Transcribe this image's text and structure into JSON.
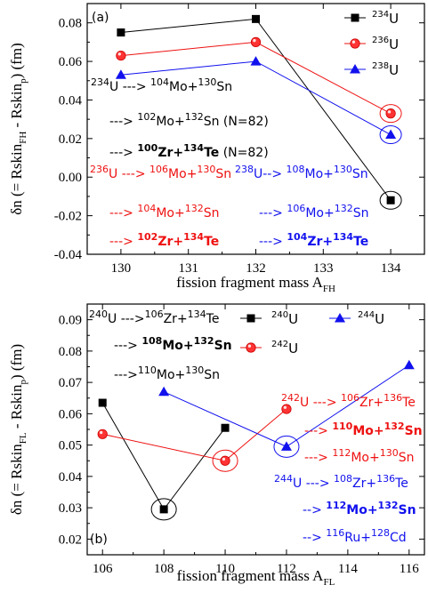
{
  "chart_data": [
    {
      "type": "line",
      "panel_label": "(a)",
      "xlabel": "fission fragment mass A",
      "xlabel_sub": "FH",
      "ylabel": "δn (= Rskin",
      "ylabel_sub1": "FH",
      "ylabel_mid": " - Rskin",
      "ylabel_sub2": "p",
      "ylabel_end": ") (fm)",
      "xlim": [
        129.5,
        134.5
      ],
      "ylim": [
        -0.04,
        0.09
      ],
      "xticks": [
        130,
        131,
        132,
        133,
        134
      ],
      "yticks": [
        -0.04,
        -0.02,
        0.0,
        0.02,
        0.04,
        0.06,
        0.08
      ],
      "ytick_labels": [
        "-0.04",
        "-0.02",
        "0.00",
        "0.02",
        "0.04",
        "0.06",
        "0.08"
      ],
      "series": [
        {
          "name_sup": "234",
          "name": "U",
          "color": "#000000",
          "marker": "square",
          "x": [
            130,
            132,
            134
          ],
          "y": [
            0.075,
            0.082,
            -0.012
          ]
        },
        {
          "name_sup": "236",
          "name": "U",
          "color": "#ee1111",
          "marker": "circle",
          "x": [
            130,
            132,
            134
          ],
          "y": [
            0.063,
            0.07,
            0.033
          ]
        },
        {
          "name_sup": "238",
          "name": "U",
          "color": "#1111ee",
          "marker": "triangle",
          "x": [
            130,
            132,
            134
          ],
          "y": [
            0.053,
            0.06,
            0.022
          ]
        }
      ],
      "ellipses": [
        {
          "x": 134,
          "y": -0.012,
          "color": "#000000"
        },
        {
          "x": 134,
          "y": 0.033,
          "color": "#ee1111"
        },
        {
          "x": 134,
          "y": 0.022,
          "color": "#1111ee"
        }
      ],
      "annotations": [
        {
          "color": "#000000",
          "bold": false,
          "parts": [
            [
              "sup",
              "234"
            ],
            [
              "t",
              "U ---> "
            ],
            [
              "sup",
              "104"
            ],
            [
              "t",
              "Mo+"
            ],
            [
              "sup",
              "130"
            ],
            [
              "t",
              "Sn"
            ]
          ]
        },
        {
          "color": "#000000",
          "bold": false,
          "parts": [
            [
              "t",
              "---> "
            ],
            [
              "sup",
              "102"
            ],
            [
              "t",
              "Mo+"
            ],
            [
              "sup",
              "132"
            ],
            [
              "t",
              "Sn (N=82)"
            ]
          ]
        },
        {
          "color": "#000000",
          "bold": false,
          "parts": [
            [
              "t",
              "---> "
            ],
            [
              "sup",
              "100",
              "b"
            ],
            [
              "t",
              "Zr+",
              "b"
            ],
            [
              "sup",
              "134",
              "b"
            ],
            [
              "t",
              "Te",
              "b"
            ],
            [
              "t",
              "  (N=82)"
            ]
          ]
        },
        {
          "color": "#ee1111",
          "bold": false,
          "parts": [
            [
              "sup",
              "236"
            ],
            [
              "t",
              "U ---> "
            ],
            [
              "sup",
              "106"
            ],
            [
              "t",
              "Mo+"
            ],
            [
              "sup",
              "130"
            ],
            [
              "t",
              "Sn"
            ]
          ]
        },
        {
          "color": "#1111ee",
          "bold": false,
          "parts": [
            [
              "sup",
              "238"
            ],
            [
              "t",
              "U--> "
            ],
            [
              "sup",
              "108"
            ],
            [
              "t",
              "Mo+"
            ],
            [
              "sup",
              "130"
            ],
            [
              "t",
              "Sn"
            ]
          ]
        },
        {
          "color": "#ee1111",
          "bold": false,
          "parts": [
            [
              "t",
              "---> "
            ],
            [
              "sup",
              "104"
            ],
            [
              "t",
              "Mo+"
            ],
            [
              "sup",
              "132"
            ],
            [
              "t",
              "Sn"
            ]
          ]
        },
        {
          "color": "#1111ee",
          "bold": false,
          "parts": [
            [
              "t",
              "---> "
            ],
            [
              "sup",
              "106"
            ],
            [
              "t",
              "Mo+"
            ],
            [
              "sup",
              "132"
            ],
            [
              "t",
              "Sn"
            ]
          ]
        },
        {
          "color": "#ee1111",
          "bold": false,
          "parts": [
            [
              "t",
              "---> "
            ],
            [
              "sup",
              "102",
              "b"
            ],
            [
              "t",
              "Zr+",
              "b"
            ],
            [
              "sup",
              "134",
              "b"
            ],
            [
              "t",
              "Te",
              "b"
            ]
          ]
        },
        {
          "color": "#1111ee",
          "bold": false,
          "parts": [
            [
              "t",
              "---> "
            ],
            [
              "sup",
              "104",
              "b"
            ],
            [
              "t",
              "Zr+",
              "b"
            ],
            [
              "sup",
              "134",
              "b"
            ],
            [
              "t",
              "Te",
              "b"
            ]
          ]
        }
      ]
    },
    {
      "type": "line",
      "panel_label": "(b)",
      "xlabel": "fission fragment mass  A",
      "xlabel_sub": "FL",
      "ylabel": "δn (= Rskin",
      "ylabel_sub1": "FL",
      "ylabel_mid": " - Rskin",
      "ylabel_sub2": "p",
      "ylabel_end": ") (fm)",
      "xlim": [
        105.5,
        116.5
      ],
      "ylim": [
        0.015,
        0.095
      ],
      "xticks": [
        106,
        108,
        110,
        112,
        114,
        116
      ],
      "yticks": [
        0.02,
        0.03,
        0.04,
        0.05,
        0.06,
        0.07,
        0.08,
        0.09
      ],
      "ytick_labels": [
        "0.02",
        "0.03",
        "0.04",
        "0.05",
        "0.06",
        "0.07",
        "0.08",
        "0.09"
      ],
      "series": [
        {
          "name_sup": "240",
          "name": "U",
          "color": "#000000",
          "marker": "square",
          "x": [
            106,
            108,
            110
          ],
          "y": [
            0.0635,
            0.0295,
            0.0555
          ]
        },
        {
          "name_sup": "242",
          "name": "U",
          "color": "#ee1111",
          "marker": "circle",
          "x": [
            106,
            110,
            112
          ],
          "y": [
            0.0535,
            0.045,
            0.0615
          ]
        },
        {
          "name_sup": "244",
          "name": "U",
          "color": "#1111ee",
          "marker": "triangle",
          "x": [
            108,
            112,
            116
          ],
          "y": [
            0.067,
            0.0495,
            0.0755
          ]
        }
      ],
      "ellipses": [
        {
          "x": 108,
          "y": 0.0295,
          "color": "#000000"
        },
        {
          "x": 110,
          "y": 0.045,
          "color": "#ee1111"
        },
        {
          "x": 112,
          "y": 0.0495,
          "color": "#1111ee"
        }
      ],
      "annotations": [
        {
          "color": "#000000",
          "bold": false,
          "parts": [
            [
              "sup",
              "240"
            ],
            [
              "t",
              "U --->"
            ],
            [
              "sup",
              "106"
            ],
            [
              "t",
              "Zr+"
            ],
            [
              "sup",
              "134"
            ],
            [
              "t",
              "Te"
            ]
          ]
        },
        {
          "color": "#000000",
          "bold": false,
          "parts": [
            [
              "t",
              "---> "
            ],
            [
              "sup",
              "108",
              "b"
            ],
            [
              "t",
              "Mo+",
              "b"
            ],
            [
              "sup",
              "132",
              "b"
            ],
            [
              "t",
              "Sn",
              "b"
            ]
          ]
        },
        {
          "color": "#000000",
          "bold": false,
          "parts": [
            [
              "t",
              "--->"
            ],
            [
              "sup",
              "110"
            ],
            [
              "t",
              "Mo+"
            ],
            [
              "sup",
              "130"
            ],
            [
              "t",
              "Sn"
            ]
          ]
        },
        {
          "color": "#ee1111",
          "bold": false,
          "parts": [
            [
              "sup",
              "242"
            ],
            [
              "t",
              "U ---> "
            ],
            [
              "sup",
              "106"
            ],
            [
              "t",
              "Zr+"
            ],
            [
              "sup",
              "136"
            ],
            [
              "t",
              "Te"
            ]
          ]
        },
        {
          "color": "#ee1111",
          "bold": false,
          "parts": [
            [
              "t",
              "---> "
            ],
            [
              "sup",
              "110",
              "b"
            ],
            [
              "t",
              "Mo+",
              "b"
            ],
            [
              "sup",
              "132",
              "b"
            ],
            [
              "t",
              "Sn",
              "b"
            ]
          ]
        },
        {
          "color": "#ee1111",
          "bold": false,
          "parts": [
            [
              "t",
              "---> "
            ],
            [
              "sup",
              "112"
            ],
            [
              "t",
              "Mo+"
            ],
            [
              "sup",
              "130"
            ],
            [
              "t",
              "Sn"
            ]
          ]
        },
        {
          "color": "#1111ee",
          "bold": false,
          "parts": [
            [
              "sup",
              "244"
            ],
            [
              "t",
              "U ---> "
            ],
            [
              "sup",
              "108"
            ],
            [
              "t",
              "Zr+"
            ],
            [
              "sup",
              "136"
            ],
            [
              "t",
              "Te"
            ]
          ]
        },
        {
          "color": "#1111ee",
          "bold": false,
          "parts": [
            [
              "t",
              "--> "
            ],
            [
              "sup",
              "112",
              "b"
            ],
            [
              "t",
              "Mo+",
              "b"
            ],
            [
              "sup",
              "132",
              "b"
            ],
            [
              "t",
              "Sn",
              "b"
            ]
          ]
        },
        {
          "color": "#1111ee",
          "bold": false,
          "parts": [
            [
              "t",
              "--> "
            ],
            [
              "sup",
              "116"
            ],
            [
              "t",
              "Ru+"
            ],
            [
              "sup",
              "128"
            ],
            [
              "t",
              "Cd"
            ]
          ]
        }
      ]
    }
  ]
}
